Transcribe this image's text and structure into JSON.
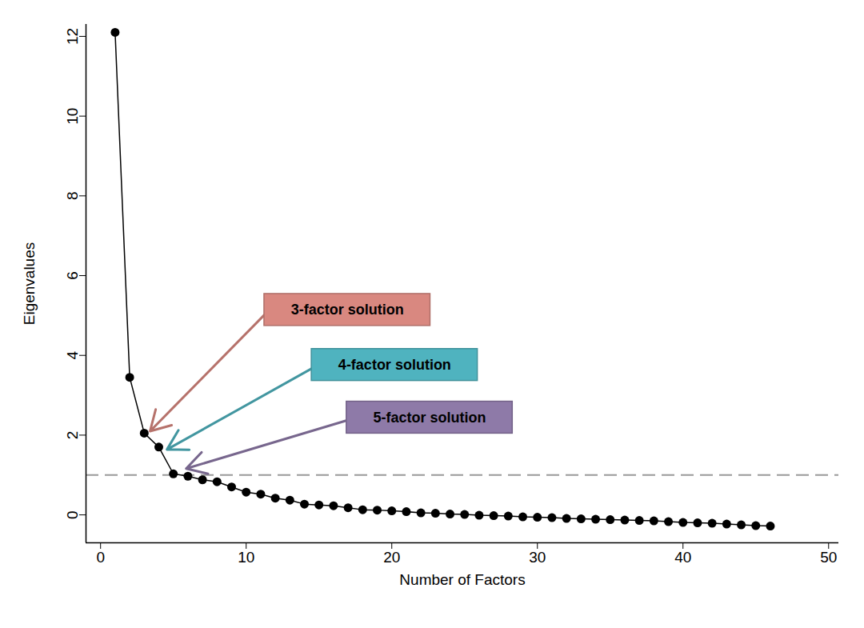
{
  "chart_data": {
    "type": "line",
    "x_label": "Number of Factors",
    "y_label": "Eigenvalues",
    "x": [
      1,
      2,
      3,
      4,
      5,
      6,
      7,
      8,
      9,
      10,
      11,
      12,
      13,
      14,
      15,
      16,
      17,
      18,
      19,
      20,
      21,
      22,
      23,
      24,
      25,
      26,
      27,
      28,
      29,
      30,
      31,
      32,
      33,
      34,
      35,
      36,
      37,
      38,
      39,
      40,
      41,
      42,
      43,
      44,
      45,
      46
    ],
    "values": [
      12.1,
      3.45,
      2.05,
      1.7,
      1.03,
      0.97,
      0.88,
      0.83,
      0.7,
      0.57,
      0.52,
      0.42,
      0.37,
      0.27,
      0.25,
      0.23,
      0.18,
      0.13,
      0.12,
      0.1,
      0.08,
      0.05,
      0.04,
      0.02,
      0.01,
      -0.01,
      -0.02,
      -0.03,
      -0.05,
      -0.06,
      -0.07,
      -0.09,
      -0.1,
      -0.11,
      -0.12,
      -0.13,
      -0.14,
      -0.15,
      -0.17,
      -0.19,
      -0.2,
      -0.21,
      -0.23,
      -0.25,
      -0.27,
      -0.28
    ],
    "color": "#000000",
    "marker": "circle",
    "xlim": [
      -1,
      50.7
    ],
    "ylim": [
      -0.7,
      12.3
    ],
    "xticks": [
      0,
      10,
      20,
      30,
      40,
      50
    ],
    "yticks": [
      0,
      2,
      4,
      6,
      8,
      10,
      12
    ],
    "grid": false,
    "reference_line": {
      "value": 1,
      "line_style": "dashed",
      "color": "#999999"
    },
    "annotations": [
      {
        "text": "3-factor solution",
        "x": 3.4,
        "y": 2.1,
        "color": "#d98880"
      },
      {
        "text": "4-factor solution",
        "x": 4.56,
        "y": 1.64,
        "color": "#4fb3bf"
      },
      {
        "text": "5-factor solution",
        "x": 5.88,
        "y": 1.16,
        "color": "#8e7aa8"
      }
    ]
  }
}
